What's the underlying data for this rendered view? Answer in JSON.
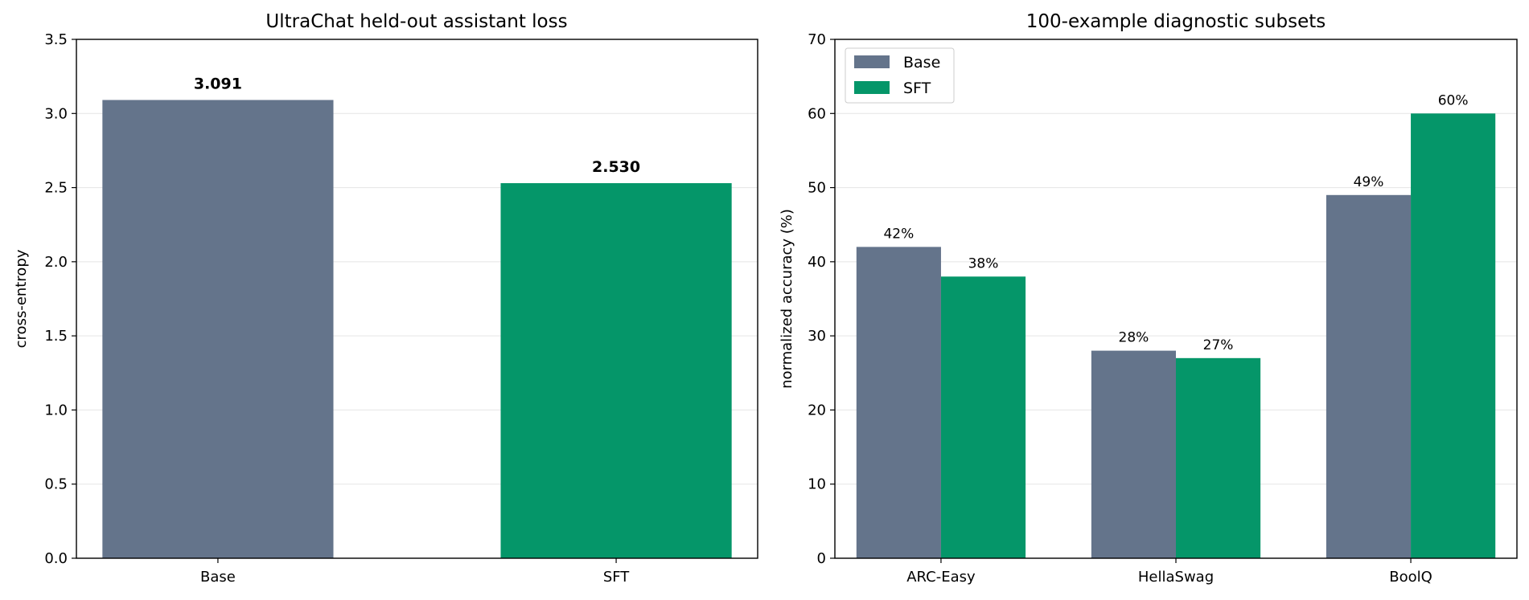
{
  "colors": {
    "base": "#64748b",
    "sft": "#059669",
    "grid": "#e5e5e5"
  },
  "chart_data": [
    {
      "type": "bar",
      "title": "UltraChat held-out assistant loss",
      "xlabel": "",
      "ylabel": "cross-entropy",
      "categories": [
        "Base",
        "SFT"
      ],
      "values": [
        3.091,
        2.53
      ],
      "value_labels": [
        "3.091",
        "2.530"
      ],
      "ylim": [
        0,
        3.5
      ],
      "yticks": [
        0,
        0.5,
        1,
        1.5,
        2,
        2.5,
        3,
        3.5
      ],
      "ytick_labels": [
        "0.0",
        "0.5",
        "1.0",
        "1.5",
        "2.0",
        "2.5",
        "3.0",
        "3.5"
      ],
      "grid": "y",
      "legend": "none"
    },
    {
      "type": "bar",
      "title": "100-example diagnostic subsets",
      "xlabel": "",
      "ylabel": "normalized accuracy (%)",
      "categories": [
        "ARC-Easy",
        "HellaSwag",
        "BoolQ"
      ],
      "series": [
        {
          "name": "Base",
          "values": [
            42,
            28,
            49
          ],
          "value_labels": [
            "42%",
            "28%",
            "49%"
          ]
        },
        {
          "name": "SFT",
          "values": [
            38,
            27,
            60
          ],
          "value_labels": [
            "38%",
            "27%",
            "60%"
          ]
        }
      ],
      "ylim": [
        0,
        70
      ],
      "yticks": [
        0,
        10,
        20,
        30,
        40,
        50,
        60,
        70
      ],
      "ytick_labels": [
        "0",
        "10",
        "20",
        "30",
        "40",
        "50",
        "60",
        "70"
      ],
      "grid": "y",
      "legend": "upper-left"
    }
  ]
}
